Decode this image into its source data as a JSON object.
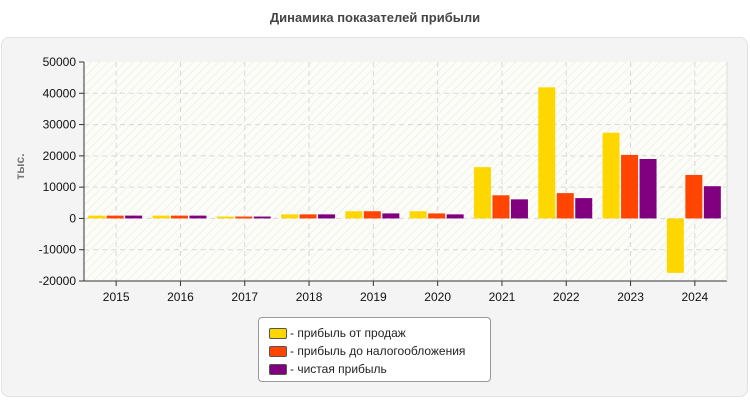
{
  "chart_data": {
    "type": "bar",
    "title": "Динамика показателей прибыли",
    "ylabel": "тыс.",
    "xlabel": "",
    "ylim": [
      -20000,
      50000
    ],
    "yticks": [
      50000,
      40000,
      30000,
      20000,
      10000,
      0,
      -10000,
      -20000
    ],
    "grid": true,
    "legend_position": "bottom",
    "categories": [
      "2015",
      "2016",
      "2017",
      "2018",
      "2019",
      "2020",
      "2021",
      "2022",
      "2023",
      "2024"
    ],
    "series": [
      {
        "name": "- прибыль от продаж",
        "color": "#ffd700",
        "values": [
          900,
          900,
          600,
          1300,
          2300,
          2300,
          16400,
          41900,
          27400,
          -17400
        ]
      },
      {
        "name": "- прибыль до налогообложения",
        "color": "#ff4500",
        "values": [
          900,
          900,
          600,
          1300,
          2300,
          1600,
          7400,
          8100,
          20300,
          13900
        ]
      },
      {
        "name": "- чистая прибыль",
        "color": "#800080",
        "values": [
          900,
          900,
          600,
          1300,
          1600,
          1300,
          6100,
          6500,
          19000,
          10300
        ]
      }
    ]
  }
}
